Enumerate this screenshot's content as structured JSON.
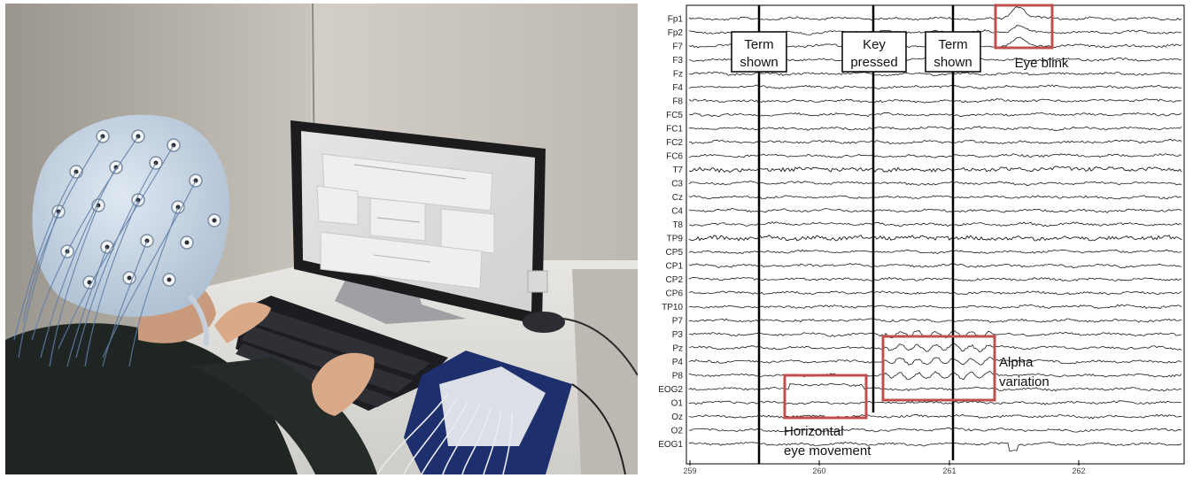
{
  "eeg": {
    "channels": [
      "Fp1",
      "Fp2",
      "F7",
      "F3",
      "Fz",
      "F4",
      "F8",
      "FC5",
      "FC1",
      "FC2",
      "FC6",
      "T7",
      "C3",
      "Cz",
      "C4",
      "T8",
      "TP9",
      "CP5",
      "CP1",
      "CP2",
      "CP6",
      "TP10",
      "P7",
      "P3",
      "Pz",
      "P4",
      "P8",
      "EOG2",
      "O1",
      "Oz",
      "O2",
      "EOG1"
    ],
    "time_ticks": [
      "259",
      "260",
      "261",
      "262"
    ],
    "events": [
      {
        "line1": "Term",
        "line2": "shown"
      },
      {
        "line1": "Key",
        "line2": "pressed"
      },
      {
        "line1": "Term",
        "line2": "shown"
      }
    ],
    "annotations": {
      "eye_blink": "Eye blink",
      "alpha_line1": "Alpha",
      "alpha_line2": "variation",
      "horizontal_line1": "Horizontal",
      "horizontal_line2": "eye movement"
    },
    "colors": {
      "trace": "#1a1a1a",
      "event_line": "#000000",
      "highlight_box": "#c0504d"
    }
  }
}
